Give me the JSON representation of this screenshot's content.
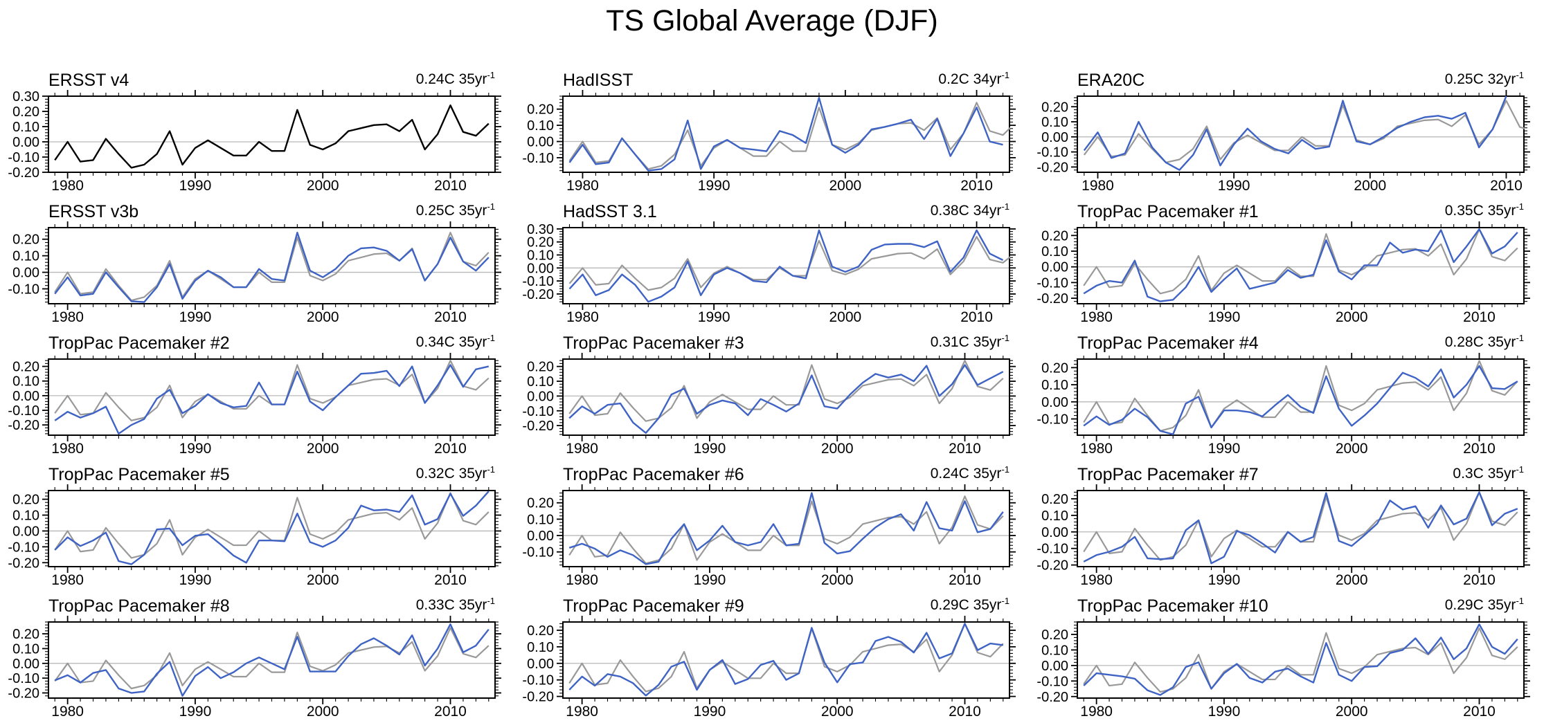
{
  "page_title": "TS Global Average (DJF)",
  "colors": {
    "obs_line": "#000000",
    "model_line": "#3E63C4",
    "reference_line": "#999999",
    "zero_line": "#b8b8b8",
    "frame": "#000000"
  },
  "reference_series": {
    "name": "ERSST v4 (reference overlay)",
    "x_start": 1979,
    "values": [
      -0.12,
      0,
      -0.13,
      -0.12,
      0.02,
      -0.08,
      -0.17,
      -0.15,
      -0.08,
      0.07,
      -0.15,
      -0.04,
      0.01,
      -0.04,
      -0.09,
      -0.09,
      0,
      -0.06,
      -0.06,
      0.21,
      -0.02,
      -0.05,
      -0.01,
      0.07,
      0.09,
      0.11,
      0.115,
      0.07,
      0.145,
      -0.05,
      0.05,
      0.24,
      0.065,
      0.04,
      0.12
    ]
  },
  "chart_data": [
    {
      "type": "line",
      "title": "ERSST v4",
      "trend": "0.24C 35yr",
      "trend_sup": "-1",
      "x_start": 1979,
      "xlim": [
        1978.5,
        2013.5
      ],
      "xticks": [
        1980,
        1990,
        2000,
        2010
      ],
      "ylim": [
        -0.2,
        0.3
      ],
      "ytick_labels": [
        0.3,
        0.2,
        0.1,
        0,
        -0.1,
        -0.2
      ],
      "line_color": "#000000",
      "show_reference": false,
      "values": [
        -0.12,
        0,
        -0.13,
        -0.12,
        0.02,
        -0.08,
        -0.17,
        -0.15,
        -0.08,
        0.07,
        -0.15,
        -0.04,
        0.01,
        -0.04,
        -0.09,
        -0.09,
        0,
        -0.06,
        -0.06,
        0.21,
        -0.02,
        -0.05,
        -0.01,
        0.07,
        0.09,
        0.11,
        0.115,
        0.07,
        0.145,
        -0.05,
        0.05,
        0.24,
        0.065,
        0.04,
        0.12
      ]
    },
    {
      "type": "line",
      "title": "HadISST",
      "trend": "0.2C 34yr",
      "trend_sup": "-1",
      "x_start": 1979,
      "xlim": [
        1978.5,
        2012.5
      ],
      "xticks": [
        1980,
        1990,
        2000,
        2010
      ],
      "ylim": [
        -0.19,
        0.28
      ],
      "ytick_labels": [
        0.2,
        0.1,
        0,
        -0.1
      ],
      "line_color": "#3E63C4",
      "show_reference": true,
      "values": [
        -0.13,
        -0.02,
        -0.14,
        -0.13,
        0.02,
        -0.08,
        -0.18,
        -0.17,
        -0.11,
        0.13,
        -0.17,
        -0.03,
        0.01,
        -0.04,
        -0.05,
        -0.06,
        0.065,
        0.04,
        -0.01,
        0.27,
        -0.02,
        -0.07,
        -0.02,
        0.075,
        0.09,
        0.11,
        0.135,
        0.015,
        0.14,
        -0.09,
        0.05,
        0.21,
        0,
        -0.02
      ]
    },
    {
      "type": "line",
      "title": "ERA20C",
      "trend": "0.25C 32yr",
      "trend_sup": "-1",
      "x_start": 1979,
      "xlim": [
        1978.5,
        2011.3
      ],
      "xticks": [
        1980,
        1990,
        2000,
        2010
      ],
      "ylim": [
        -0.235,
        0.27
      ],
      "ytick_labels": [
        0.2,
        0.1,
        0,
        -0.1,
        -0.2
      ],
      "line_color": "#3E63C4",
      "show_reference": true,
      "values": [
        -0.09,
        0.03,
        -0.14,
        -0.11,
        0.1,
        -0.07,
        -0.17,
        -0.22,
        -0.12,
        0.05,
        -0.19,
        -0.05,
        0.055,
        -0.03,
        -0.08,
        -0.11,
        -0.02,
        -0.08,
        -0.065,
        0.24,
        -0.03,
        -0.05,
        0,
        0.06,
        0.1,
        0.13,
        0.14,
        0.12,
        0.16,
        -0.07,
        0.05,
        0.27
      ]
    },
    {
      "type": "line",
      "title": "ERSST v3b",
      "trend": "0.25C 35yr",
      "trend_sup": "-1",
      "x_start": 1979,
      "xlim": [
        1978.5,
        2013.5
      ],
      "xticks": [
        1980,
        1990,
        2000,
        2010
      ],
      "ylim": [
        -0.19,
        0.27
      ],
      "ytick_labels": [
        0.2,
        0.1,
        0,
        -0.1
      ],
      "line_color": "#3E63C4",
      "show_reference": true,
      "values": [
        -0.13,
        -0.03,
        -0.14,
        -0.13,
        0,
        -0.09,
        -0.175,
        -0.18,
        -0.09,
        0.05,
        -0.16,
        -0.05,
        0.01,
        -0.03,
        -0.09,
        -0.09,
        0.02,
        -0.04,
        -0.05,
        0.24,
        0.01,
        -0.03,
        0.02,
        0.1,
        0.145,
        0.15,
        0.13,
        0.07,
        0.14,
        -0.05,
        0.05,
        0.21,
        0.065,
        0.01,
        0.09
      ]
    },
    {
      "type": "line",
      "title": "HadSST 3.1",
      "trend": "0.38C 34yr",
      "trend_sup": "-1",
      "x_start": 1979,
      "xlim": [
        1978.5,
        2012.5
      ],
      "xticks": [
        1980,
        1990,
        2000,
        2010
      ],
      "ylim": [
        -0.275,
        0.31
      ],
      "ytick_labels": [
        0.3,
        0.2,
        0.1,
        0,
        -0.1,
        -0.2
      ],
      "line_color": "#3E63C4",
      "show_reference": true,
      "values": [
        -0.16,
        -0.05,
        -0.21,
        -0.17,
        -0.05,
        -0.13,
        -0.26,
        -0.22,
        -0.15,
        0.05,
        -0.21,
        -0.05,
        0,
        -0.04,
        -0.1,
        -0.11,
        0.01,
        -0.06,
        -0.08,
        0.29,
        0.01,
        -0.03,
        0.01,
        0.14,
        0.18,
        0.185,
        0.185,
        0.16,
        0.205,
        -0.03,
        0.08,
        0.29,
        0.11,
        0.06
      ]
    },
    {
      "type": "line",
      "title": "TropPac Pacemaker #1",
      "trend": "0.35C 35yr",
      "trend_sup": "-1",
      "x_start": 1979,
      "xlim": [
        1978.5,
        2013.5
      ],
      "xticks": [
        1980,
        1990,
        2000,
        2010
      ],
      "ylim": [
        -0.235,
        0.25
      ],
      "ytick_labels": [
        0.2,
        0.1,
        0,
        -0.1,
        -0.2
      ],
      "line_color": "#3E63C4",
      "show_reference": true,
      "values": [
        -0.17,
        -0.12,
        -0.09,
        -0.1,
        0.04,
        -0.19,
        -0.22,
        -0.21,
        -0.13,
        0,
        -0.16,
        -0.08,
        -0.01,
        -0.14,
        -0.12,
        -0.1,
        -0.02,
        -0.07,
        -0.05,
        0.17,
        -0.03,
        -0.08,
        0.01,
        0.01,
        0.155,
        0.09,
        0.11,
        0.1,
        0.235,
        0.03,
        0.13,
        0.24,
        0.085,
        0.13,
        0.22
      ]
    },
    {
      "type": "line",
      "title": "TropPac Pacemaker #2",
      "trend": "0.34C 35yr",
      "trend_sup": "-1",
      "x_start": 1979,
      "xlim": [
        1978.5,
        2013.5
      ],
      "xticks": [
        1980,
        1990,
        2000,
        2010
      ],
      "ylim": [
        -0.27,
        0.25
      ],
      "ytick_labels": [
        0.2,
        0.1,
        0,
        -0.1,
        -0.2
      ],
      "line_color": "#3E63C4",
      "show_reference": true,
      "values": [
        -0.17,
        -0.11,
        -0.15,
        -0.12,
        -0.075,
        -0.26,
        -0.2,
        -0.16,
        -0.02,
        0.04,
        -0.12,
        -0.07,
        0.01,
        -0.05,
        -0.08,
        -0.07,
        0.09,
        -0.06,
        -0.06,
        0.165,
        -0.04,
        -0.1,
        -0.01,
        0.07,
        0.15,
        0.155,
        0.17,
        0.065,
        0.2,
        -0.05,
        0.07,
        0.21,
        0.06,
        0.18,
        0.2
      ]
    },
    {
      "type": "line",
      "title": "TropPac Pacemaker #3",
      "trend": "0.31C 35yr",
      "trend_sup": "-1",
      "x_start": 1979,
      "xlim": [
        1978.5,
        2013.5
      ],
      "xticks": [
        1980,
        1990,
        2000,
        2010
      ],
      "ylim": [
        -0.265,
        0.25
      ],
      "ytick_labels": [
        0.2,
        0.1,
        0,
        -0.1,
        -0.2
      ],
      "line_color": "#3E63C4",
      "show_reference": true,
      "values": [
        -0.15,
        -0.07,
        -0.12,
        -0.06,
        -0.05,
        -0.18,
        -0.25,
        -0.15,
        0.01,
        0.05,
        -0.12,
        -0.06,
        -0.03,
        -0.05,
        -0.13,
        -0.02,
        -0.06,
        -0.105,
        -0.05,
        0.14,
        -0.07,
        -0.085,
        0.01,
        0.09,
        0.15,
        0.125,
        0.145,
        0.1,
        0.205,
        0,
        0.08,
        0.21,
        0.075,
        0.12,
        0.165
      ]
    },
    {
      "type": "line",
      "title": "TropPac Pacemaker #4",
      "trend": "0.28C 35yr",
      "trend_sup": "-1",
      "x_start": 1979,
      "xlim": [
        1978.5,
        2013.5
      ],
      "xticks": [
        1980,
        1990,
        2000,
        2010
      ],
      "ylim": [
        -0.195,
        0.25
      ],
      "ytick_labels": [
        0.2,
        0.1,
        0,
        -0.1
      ],
      "line_color": "#3E63C4",
      "show_reference": true,
      "values": [
        -0.14,
        -0.085,
        -0.135,
        -0.105,
        -0.04,
        -0.09,
        -0.17,
        -0.19,
        -0.01,
        0.03,
        -0.15,
        -0.05,
        -0.05,
        -0.06,
        -0.085,
        -0.02,
        0.04,
        -0.03,
        -0.065,
        0.15,
        -0.04,
        -0.14,
        -0.08,
        -0.01,
        0.08,
        0.17,
        0.14,
        0.09,
        0.19,
        0.025,
        0.1,
        0.21,
        0.08,
        0.075,
        0.12
      ]
    },
    {
      "type": "line",
      "title": "TropPac Pacemaker #5",
      "trend": "0.32C 35yr",
      "trend_sup": "-1",
      "x_start": 1979,
      "xlim": [
        1978.5,
        2013.5
      ],
      "xticks": [
        1980,
        1990,
        2000,
        2010
      ],
      "ylim": [
        -0.225,
        0.255
      ],
      "ytick_labels": [
        0.2,
        0.1,
        0,
        -0.1,
        -0.2
      ],
      "line_color": "#3E63C4",
      "show_reference": true,
      "values": [
        -0.12,
        -0.04,
        -0.095,
        -0.06,
        -0.01,
        -0.19,
        -0.21,
        -0.15,
        0.01,
        0.015,
        -0.09,
        -0.03,
        -0.02,
        -0.085,
        -0.155,
        -0.2,
        -0.06,
        -0.06,
        -0.065,
        0.11,
        -0.07,
        -0.1,
        -0.06,
        0.02,
        0.16,
        0.13,
        0.135,
        0.12,
        0.225,
        0.04,
        0.075,
        0.235,
        0.095,
        0.16,
        0.25
      ]
    },
    {
      "type": "line",
      "title": "TropPac Pacemaker #6",
      "trend": "0.24C 35yr",
      "trend_sup": "-1",
      "x_start": 1979,
      "xlim": [
        1978.5,
        2013.5
      ],
      "xticks": [
        1980,
        1990,
        2000,
        2010
      ],
      "ylim": [
        -0.19,
        0.275
      ],
      "ytick_labels": [
        0.2,
        0.1,
        0,
        -0.1
      ],
      "line_color": "#3E63C4",
      "show_reference": true,
      "values": [
        -0.075,
        -0.05,
        -0.08,
        -0.13,
        -0.09,
        -0.12,
        -0.175,
        -0.16,
        -0.02,
        0.07,
        -0.09,
        -0.03,
        0.06,
        -0.04,
        -0.06,
        -0.04,
        0.07,
        -0.06,
        -0.05,
        0.26,
        -0.045,
        -0.11,
        -0.095,
        -0.02,
        0.05,
        0.1,
        0.13,
        0.03,
        0.205,
        0.045,
        0.03,
        0.21,
        0.02,
        0.04,
        0.145
      ]
    },
    {
      "type": "line",
      "title": "TropPac Pacemaker #7",
      "trend": "0.3C 35yr",
      "trend_sup": "-1",
      "x_start": 1979,
      "xlim": [
        1978.5,
        2013.5
      ],
      "xticks": [
        1980,
        1990,
        2000,
        2010
      ],
      "ylim": [
        -0.21,
        0.25
      ],
      "ytick_labels": [
        0.2,
        0.1,
        0,
        -0.1,
        -0.2
      ],
      "line_color": "#3E63C4",
      "show_reference": true,
      "values": [
        -0.18,
        -0.14,
        -0.12,
        -0.09,
        -0.03,
        -0.16,
        -0.165,
        -0.16,
        0.01,
        0.07,
        -0.19,
        -0.15,
        0.005,
        -0.02,
        -0.07,
        -0.125,
        0,
        -0.06,
        -0.03,
        0.235,
        -0.055,
        -0.085,
        -0.02,
        0.05,
        0.19,
        0.135,
        0.155,
        0.025,
        0.16,
        0.045,
        0.08,
        0.24,
        0.04,
        0.11,
        0.14
      ]
    },
    {
      "type": "line",
      "title": "TropPac Pacemaker #8",
      "trend": "0.33C 35yr",
      "trend_sup": "-1",
      "x_start": 1979,
      "xlim": [
        1978.5,
        2013.5
      ],
      "xticks": [
        1980,
        1990,
        2000,
        2010
      ],
      "ylim": [
        -0.235,
        0.28
      ],
      "ytick_labels": [
        0.2,
        0.1,
        0,
        -0.1,
        -0.2
      ],
      "line_color": "#3E63C4",
      "show_reference": true,
      "values": [
        -0.115,
        -0.08,
        -0.13,
        -0.065,
        -0.045,
        -0.17,
        -0.2,
        -0.19,
        -0.07,
        0.01,
        -0.22,
        -0.085,
        -0.025,
        -0.1,
        -0.06,
        0,
        0.04,
        0,
        -0.04,
        0.18,
        -0.055,
        -0.055,
        -0.055,
        0.05,
        0.13,
        0.17,
        0.12,
        0.06,
        0.19,
        -0.015,
        0.1,
        0.265,
        0.075,
        0.12,
        0.23
      ]
    },
    {
      "type": "line",
      "title": "TropPac Pacemaker #9",
      "trend": "0.29C 35yr",
      "trend_sup": "-1",
      "x_start": 1979,
      "xlim": [
        1978.5,
        2013.5
      ],
      "xticks": [
        1980,
        1990,
        2000,
        2010
      ],
      "ylim": [
        -0.21,
        0.25
      ],
      "ytick_labels": [
        0.2,
        0.1,
        0,
        -0.1,
        -0.2
      ],
      "line_color": "#3E63C4",
      "show_reference": true,
      "values": [
        -0.16,
        -0.08,
        -0.135,
        -0.065,
        -0.08,
        -0.12,
        -0.195,
        -0.13,
        -0.02,
        0.01,
        -0.16,
        -0.04,
        0.02,
        -0.125,
        -0.095,
        -0.01,
        0.015,
        -0.1,
        -0.06,
        0.215,
        0.005,
        -0.115,
        -0.005,
        0.005,
        0.135,
        0.16,
        0.13,
        0.065,
        0.185,
        0.03,
        0.06,
        0.24,
        0.08,
        0.12,
        0.11
      ]
    },
    {
      "type": "line",
      "title": "TropPac Pacemaker #10",
      "trend": "0.29C 35yr",
      "trend_sup": "-1",
      "x_start": 1979,
      "xlim": [
        1978.5,
        2013.5
      ],
      "xticks": [
        1980,
        1990,
        2000,
        2010
      ],
      "ylim": [
        -0.21,
        0.28
      ],
      "ytick_labels": [
        0.2,
        0.1,
        0,
        -0.1,
        -0.2
      ],
      "line_color": "#3E63C4",
      "show_reference": true,
      "values": [
        -0.13,
        -0.05,
        -0.06,
        -0.07,
        -0.085,
        -0.16,
        -0.19,
        -0.14,
        -0.01,
        0.02,
        -0.15,
        -0.05,
        0.01,
        -0.08,
        -0.11,
        -0.04,
        -0.02,
        -0.07,
        -0.11,
        0.145,
        -0.06,
        -0.1,
        -0.01,
        -0.005,
        0.08,
        0.1,
        0.175,
        0.075,
        0.18,
        0.04,
        0.11,
        0.265,
        0.12,
        0.075,
        0.17
      ]
    }
  ]
}
